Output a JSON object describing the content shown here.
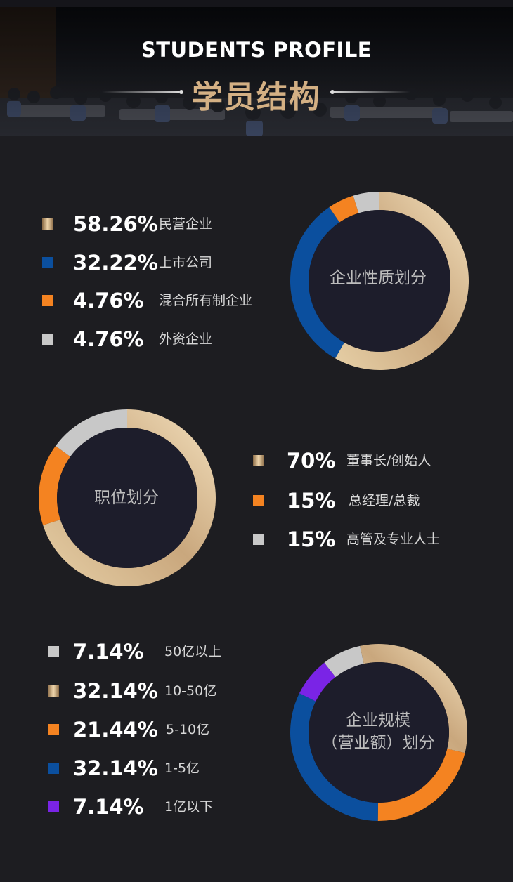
{
  "header": {
    "title_en": "STUDENTS PROFILE",
    "title_cn": "学员结构"
  },
  "colors": {
    "gold": "#c9a77d",
    "blue": "#0b4f9e",
    "orange": "#f48321",
    "gray": "#c8c8c8",
    "purple": "#7a24e6",
    "center": "#1d1d2b",
    "background": "#1d1d21"
  },
  "chart_data": [
    {
      "type": "pie",
      "title": "企业性质划分",
      "series": [
        {
          "name": "民营企业",
          "value": 58.26,
          "label": "58.26%",
          "color": "gold"
        },
        {
          "name": "上市公司",
          "value": 32.22,
          "label": "32.22%",
          "color": "blue"
        },
        {
          "name": "混合所有制企业",
          "value": 4.76,
          "label": "4.76%",
          "color": "orange"
        },
        {
          "name": "外资企业",
          "value": 4.76,
          "label": "4.76%",
          "color": "gray"
        }
      ]
    },
    {
      "type": "pie",
      "title": "职位划分",
      "series": [
        {
          "name": "董事长/创始人",
          "value": 70,
          "label": "70%",
          "color": "gold"
        },
        {
          "name": "总经理/总裁",
          "value": 15,
          "label": "15%",
          "color": "orange"
        },
        {
          "name": "高管及专业人士",
          "value": 15,
          "label": "15%",
          "color": "gray"
        }
      ]
    },
    {
      "type": "pie",
      "title": "企业规模（营业额）划分",
      "title_lines": [
        "企业规模",
        "（营业额）划分"
      ],
      "series": [
        {
          "name": "50亿以上",
          "value": 7.14,
          "label": "7.14%",
          "color": "gray"
        },
        {
          "name": "10-50亿",
          "value": 32.14,
          "label": "32.14%",
          "color": "gold"
        },
        {
          "name": "5-10亿",
          "value": 21.44,
          "label": "21.44%",
          "color": "orange"
        },
        {
          "name": "1-5亿",
          "value": 32.14,
          "label": "32.14%",
          "color": "blue"
        },
        {
          "name": "1亿以下",
          "value": 7.14,
          "label": "7.14%",
          "color": "purple"
        }
      ]
    }
  ]
}
